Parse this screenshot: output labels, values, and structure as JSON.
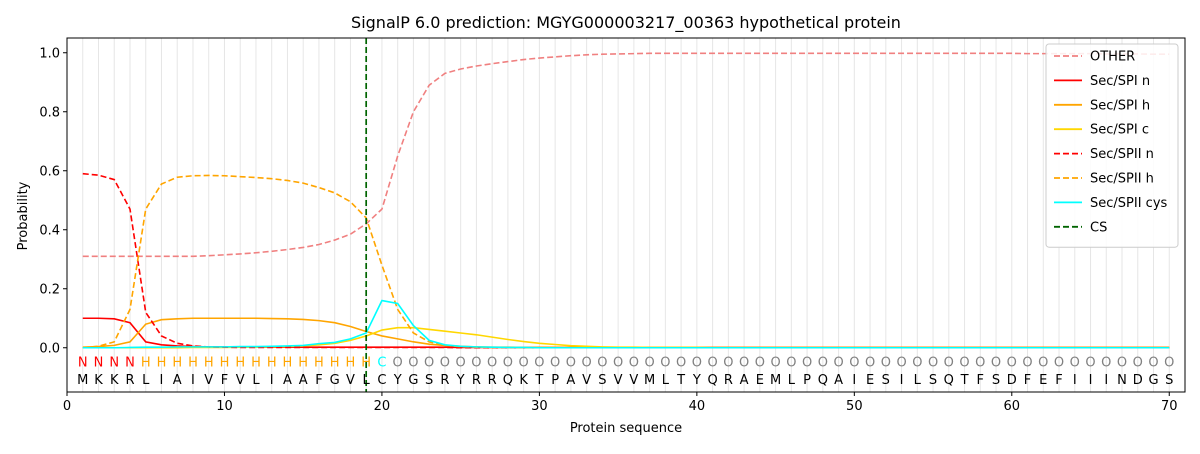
{
  "chart_data": {
    "type": "line",
    "title": "SignalP 6.0 prediction: MGYG000003217_00363 hypothetical protein",
    "xlabel": "Protein sequence",
    "ylabel": "Probability",
    "xlim": [
      0,
      71
    ],
    "ylim": [
      -0.15,
      1.05
    ],
    "x_ticks": [
      0,
      10,
      20,
      30,
      40,
      50,
      60,
      70
    ],
    "y_ticks": [
      0.0,
      0.2,
      0.4,
      0.6,
      0.8,
      1.0
    ],
    "x_tick_labels": [
      "0",
      "10",
      "20",
      "30",
      "40",
      "50",
      "60",
      "70"
    ],
    "y_tick_labels": [
      "0.0",
      "0.2",
      "0.4",
      "0.6",
      "0.8",
      "1.0"
    ],
    "grid": "vertical lines at every residue",
    "legend_position": "top-right",
    "sequence": [
      "M",
      "K",
      "K",
      "R",
      "L",
      "I",
      "A",
      "I",
      "V",
      "F",
      "V",
      "L",
      "I",
      "A",
      "A",
      "F",
      "G",
      "V",
      "L",
      "C",
      "Y",
      "G",
      "S",
      "R",
      "Y",
      "R",
      "R",
      "Q",
      "K",
      "T",
      "P",
      "A",
      "V",
      "S",
      "V",
      "V",
      "M",
      "L",
      "T",
      "Y",
      "Q",
      "R",
      "A",
      "E",
      "M",
      "L",
      "P",
      "Q",
      "A",
      "I",
      "E",
      "S",
      "I",
      "L",
      "S",
      "Q",
      "T",
      "F",
      "S",
      "D",
      "F",
      "E",
      "F",
      "I",
      "I",
      "I",
      "N",
      "D",
      "G",
      "S"
    ],
    "region_labels": [
      "N",
      "N",
      "N",
      "N",
      "H",
      "H",
      "H",
      "H",
      "H",
      "H",
      "H",
      "H",
      "H",
      "H",
      "H",
      "H",
      "H",
      "H",
      "H",
      "C",
      "O",
      "O",
      "O",
      "O",
      "O",
      "O",
      "O",
      "O",
      "O",
      "O",
      "O",
      "O",
      "O",
      "O",
      "O",
      "O",
      "O",
      "O",
      "O",
      "O",
      "O",
      "O",
      "O",
      "O",
      "O",
      "O",
      "O",
      "O",
      "O",
      "O",
      "O",
      "O",
      "O",
      "O",
      "O",
      "O",
      "O",
      "O",
      "O",
      "O",
      "O",
      "O",
      "O",
      "O",
      "O",
      "O",
      "O",
      "O",
      "O",
      "O"
    ],
    "region_colors": {
      "N": "#ff0000",
      "H": "#ffa500",
      "C": "#00ffff",
      "O": "#808080"
    },
    "cleavage_site": 19,
    "series": [
      {
        "name": "OTHER",
        "color": "#f08080",
        "dash": "dashed",
        "values": [
          0.31,
          0.31,
          0.31,
          0.31,
          0.31,
          0.31,
          0.31,
          0.31,
          0.312,
          0.315,
          0.318,
          0.322,
          0.327,
          0.333,
          0.34,
          0.35,
          0.365,
          0.385,
          0.42,
          0.47,
          0.65,
          0.8,
          0.89,
          0.93,
          0.945,
          0.955,
          0.963,
          0.97,
          0.977,
          0.982,
          0.986,
          0.99,
          0.993,
          0.995,
          0.996,
          0.997,
          0.998,
          0.998,
          0.998,
          0.998,
          0.998,
          0.998,
          0.998,
          0.998,
          0.998,
          0.998,
          0.998,
          0.998,
          0.998,
          0.998,
          0.998,
          0.998,
          0.998,
          0.998,
          0.998,
          0.998,
          0.998,
          0.998,
          0.998,
          0.998,
          0.997,
          0.997,
          0.997,
          0.997,
          0.997,
          0.996,
          0.996,
          0.996,
          0.995,
          0.995
        ]
      },
      {
        "name": "Sec/SPI n",
        "color": "#ff0000",
        "dash": "solid",
        "values": [
          0.1,
          0.1,
          0.098,
          0.085,
          0.02,
          0.01,
          0.006,
          0.004,
          0.003,
          0.003,
          0.002,
          0.002,
          0.002,
          0.002,
          0.002,
          0.002,
          0.002,
          0.002,
          0.002,
          0.002,
          0.002,
          0.002,
          0.002,
          0.002,
          0.001,
          0.001,
          0.001,
          0.001,
          0.001,
          0.001,
          0.001,
          0.001,
          0.001,
          0.001,
          0.001,
          0.001,
          0.001,
          0.001,
          0.001,
          0.001,
          0.001,
          0.001,
          0.001,
          0.001,
          0.001,
          0.001,
          0.001,
          0.001,
          0.001,
          0.001,
          0.001,
          0.001,
          0.001,
          0.001,
          0.001,
          0.001,
          0.001,
          0.001,
          0.001,
          0.001,
          0.001,
          0.001,
          0.001,
          0.001,
          0.001,
          0.001,
          0.001,
          0.001,
          0.001,
          0.001
        ]
      },
      {
        "name": "Sec/SPI h",
        "color": "#ffa500",
        "dash": "solid",
        "values": [
          0.002,
          0.004,
          0.008,
          0.02,
          0.08,
          0.095,
          0.098,
          0.1,
          0.1,
          0.1,
          0.1,
          0.1,
          0.099,
          0.098,
          0.096,
          0.092,
          0.085,
          0.072,
          0.055,
          0.04,
          0.03,
          0.02,
          0.012,
          0.008,
          0.005,
          0.003,
          0.002,
          0.002,
          0.001,
          0.001,
          0.001,
          0.001,
          0.001,
          0.001,
          0.001,
          0.001,
          0.001,
          0.001,
          0.001,
          0.001,
          0.001,
          0.001,
          0.001,
          0.001,
          0.001,
          0.001,
          0.001,
          0.001,
          0.001,
          0.001,
          0.001,
          0.001,
          0.001,
          0.001,
          0.001,
          0.001,
          0.001,
          0.001,
          0.001,
          0.001,
          0.001,
          0.001,
          0.001,
          0.001,
          0.001,
          0.001,
          0.001,
          0.001,
          0.001,
          0.001
        ]
      },
      {
        "name": "Sec/SPI c",
        "color": "#ffd700",
        "dash": "solid",
        "values": [
          0.0,
          0.0,
          0.0,
          0.0,
          0.0,
          0.0,
          0.0,
          0.001,
          0.001,
          0.001,
          0.002,
          0.002,
          0.003,
          0.004,
          0.006,
          0.01,
          0.015,
          0.025,
          0.04,
          0.06,
          0.068,
          0.068,
          0.062,
          0.056,
          0.05,
          0.044,
          0.036,
          0.028,
          0.021,
          0.015,
          0.011,
          0.007,
          0.005,
          0.003,
          0.002,
          0.002,
          0.001,
          0.001,
          0.001,
          0.001,
          0.0,
          0.0,
          0.0,
          0.0,
          0.0,
          0.0,
          0.0,
          0.0,
          0.0,
          0.0,
          0.0,
          0.0,
          0.0,
          0.0,
          0.0,
          0.0,
          0.0,
          0.0,
          0.0,
          0.0,
          0.0,
          0.0,
          0.0,
          0.0,
          0.0,
          0.0,
          0.0,
          0.0,
          0.0,
          0.0
        ]
      },
      {
        "name": "Sec/SPII n",
        "color": "#ff0000",
        "dash": "dashed",
        "values": [
          0.59,
          0.585,
          0.57,
          0.47,
          0.12,
          0.04,
          0.015,
          0.006,
          0.003,
          0.002,
          0.001,
          0.001,
          0.001,
          0.001,
          0.001,
          0.001,
          0.001,
          0.001,
          0.001,
          0.001,
          0.001,
          0.001,
          0.001,
          0.001,
          0.0,
          0.0,
          0.0,
          0.0,
          0.0,
          0.0,
          0.0,
          0.0,
          0.0,
          0.0,
          0.0,
          0.0,
          0.0,
          0.0,
          0.0,
          0.0,
          0.0,
          0.0,
          0.0,
          0.0,
          0.0,
          0.0,
          0.0,
          0.0,
          0.0,
          0.0,
          0.0,
          0.0,
          0.0,
          0.0,
          0.0,
          0.0,
          0.0,
          0.0,
          0.0,
          0.0,
          0.0,
          0.0,
          0.0,
          0.0,
          0.0,
          0.0,
          0.0,
          0.0,
          0.0,
          0.0
        ]
      },
      {
        "name": "Sec/SPII h",
        "color": "#ffa500",
        "dash": "dashed",
        "values": [
          0.0,
          0.005,
          0.02,
          0.13,
          0.47,
          0.555,
          0.578,
          0.583,
          0.584,
          0.583,
          0.58,
          0.577,
          0.573,
          0.567,
          0.558,
          0.543,
          0.525,
          0.495,
          0.44,
          0.28,
          0.13,
          0.05,
          0.02,
          0.008,
          0.004,
          0.002,
          0.001,
          0.001,
          0.0,
          0.0,
          0.0,
          0.0,
          0.0,
          0.0,
          0.0,
          0.0,
          0.0,
          0.0,
          0.0,
          0.0,
          0.0,
          0.0,
          0.0,
          0.0,
          0.0,
          0.0,
          0.0,
          0.0,
          0.0,
          0.0,
          0.0,
          0.0,
          0.0,
          0.0,
          0.0,
          0.0,
          0.0,
          0.0,
          0.0,
          0.0,
          0.0,
          0.0,
          0.0,
          0.0,
          0.0,
          0.0,
          0.0,
          0.0,
          0.0,
          0.0
        ]
      },
      {
        "name": "Sec/SPII cys",
        "color": "#00ffff",
        "dash": "solid",
        "values": [
          0.0,
          0.0,
          0.0,
          0.001,
          0.002,
          0.002,
          0.003,
          0.003,
          0.003,
          0.003,
          0.004,
          0.004,
          0.005,
          0.006,
          0.008,
          0.014,
          0.018,
          0.03,
          0.05,
          0.16,
          0.15,
          0.075,
          0.025,
          0.01,
          0.005,
          0.003,
          0.002,
          0.001,
          0.001,
          0.0,
          0.0,
          0.0,
          0.0,
          0.0,
          0.0,
          0.0,
          0.0,
          0.0,
          0.0,
          0.0,
          0.0,
          0.0,
          0.0,
          0.0,
          0.0,
          0.0,
          0.0,
          0.0,
          0.0,
          0.0,
          0.0,
          0.0,
          0.0,
          0.0,
          0.0,
          0.0,
          0.0,
          0.0,
          0.0,
          0.0,
          0.0,
          0.0,
          0.0,
          0.0,
          0.0,
          0.0,
          0.0,
          0.0,
          0.0,
          0.0
        ]
      }
    ],
    "legend": [
      {
        "label": "OTHER",
        "color": "#f08080",
        "dash": "dashed"
      },
      {
        "label": "Sec/SPI n",
        "color": "#ff0000",
        "dash": "solid"
      },
      {
        "label": "Sec/SPI h",
        "color": "#ffa500",
        "dash": "solid"
      },
      {
        "label": "Sec/SPI c",
        "color": "#ffd700",
        "dash": "solid"
      },
      {
        "label": "Sec/SPII n",
        "color": "#ff0000",
        "dash": "dashed"
      },
      {
        "label": "Sec/SPII h",
        "color": "#ffa500",
        "dash": "dashed"
      },
      {
        "label": "Sec/SPII cys",
        "color": "#00ffff",
        "dash": "solid"
      },
      {
        "label": "CS",
        "color": "#006400",
        "dash": "dashed"
      }
    ]
  }
}
